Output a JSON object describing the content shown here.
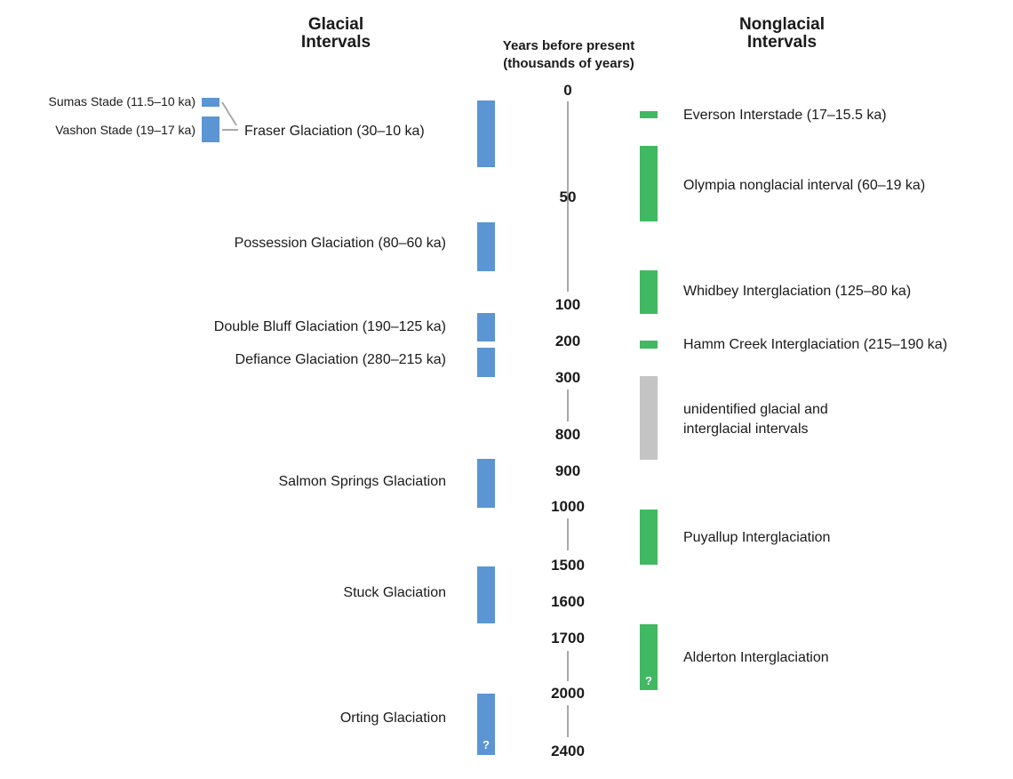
{
  "headers": {
    "glacial_line1": "Glacial",
    "glacial_line2": "Intervals",
    "years_line1": "Years before present",
    "years_line2": "(thousands of years)",
    "nonglacial_line1": "Nonglacial",
    "nonglacial_line2": "Intervals"
  },
  "ticks": [
    "0",
    "50",
    "100",
    "200",
    "300",
    "800",
    "900",
    "1000",
    "1500",
    "1600",
    "1700",
    "2000",
    "2400"
  ],
  "glacial": {
    "sumas": "Sumas Stade (11.5–10 ka)",
    "vashon": "Vashon Stade (19–17 ka)",
    "fraser": "Fraser Glaciation (30–10 ka)",
    "possession": "Possession Glaciation (80–60 ka)",
    "double_bluff": "Double Bluff Glaciation (190–125 ka)",
    "defiance": "Defiance Glaciation (280–215 ka)",
    "salmon_springs": "Salmon Springs Glaciation",
    "stuck": "Stuck Glaciation",
    "orting": "Orting Glaciation",
    "uncertain_mark": "?"
  },
  "nonglacial": {
    "everson": "Everson Interstade (17–15.5 ka)",
    "olympia": "Olympia nonglacial interval (60–19 ka)",
    "whidbey": "Whidbey Interglaciation (125–80 ka)",
    "hamm_creek": "Hamm Creek Interglaciation (215–190 ka)",
    "unidentified_line1": "unidentified glacial and",
    "unidentified_line2": "interglacial intervals",
    "puyallup": "Puyallup Interglaciation",
    "alderton": "Alderton Interglaciation",
    "uncertain_mark": "?"
  },
  "colors": {
    "glacial": "#5b95d3",
    "nonglacial": "#41b862",
    "unidentified": "#c4c4c4",
    "axis": "#a9a9a9"
  }
}
